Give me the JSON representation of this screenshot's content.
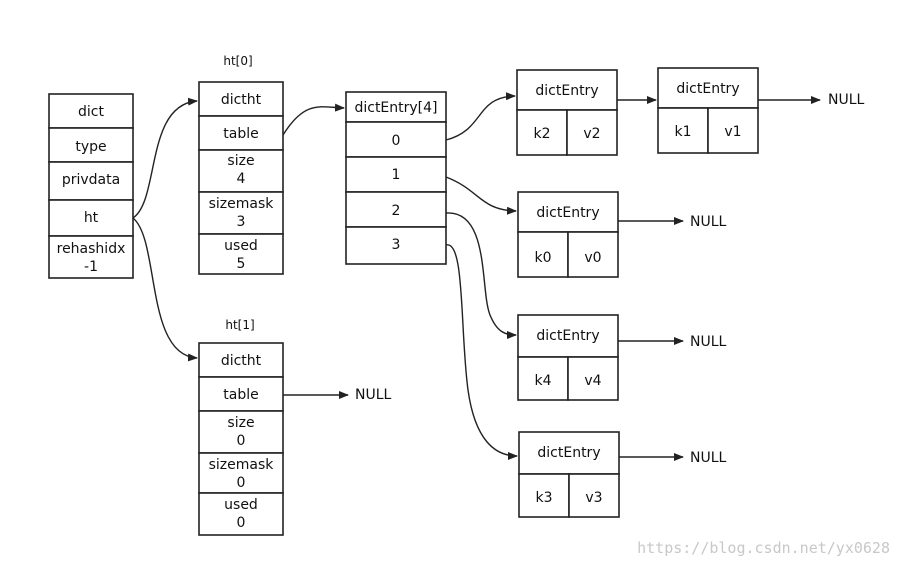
{
  "dict": {
    "fields": [
      "dict",
      "type",
      "privdata",
      "ht",
      "rehashidx",
      "-1"
    ]
  },
  "ht0": {
    "title": "ht[0]",
    "header": "dictht",
    "table": "table",
    "size_label": "size",
    "size_value": "4",
    "sizemask_label": "sizemask",
    "sizemask_value": "3",
    "used_label": "used",
    "used_value": "5"
  },
  "ht1": {
    "title": "ht[1]",
    "header": "dictht",
    "table": "table",
    "size_label": "size",
    "size_value": "0",
    "sizemask_label": "sizemask",
    "sizemask_value": "0",
    "used_label": "used",
    "used_value": "0",
    "null": "NULL"
  },
  "bucket_array": {
    "header": "dictEntry[4]",
    "indices": [
      "0",
      "1",
      "2",
      "3"
    ]
  },
  "entries": [
    {
      "header": "dictEntry",
      "key": "k2",
      "value": "v2"
    },
    {
      "header": "dictEntry",
      "key": "k1",
      "value": "v1",
      "next": "NULL"
    },
    {
      "header": "dictEntry",
      "key": "k0",
      "value": "v0",
      "next": "NULL"
    },
    {
      "header": "dictEntry",
      "key": "k4",
      "value": "v4",
      "next": "NULL"
    },
    {
      "header": "dictEntry",
      "key": "k3",
      "value": "v3",
      "next": "NULL"
    }
  ],
  "watermark": "https://blog.csdn.net/yx0628"
}
